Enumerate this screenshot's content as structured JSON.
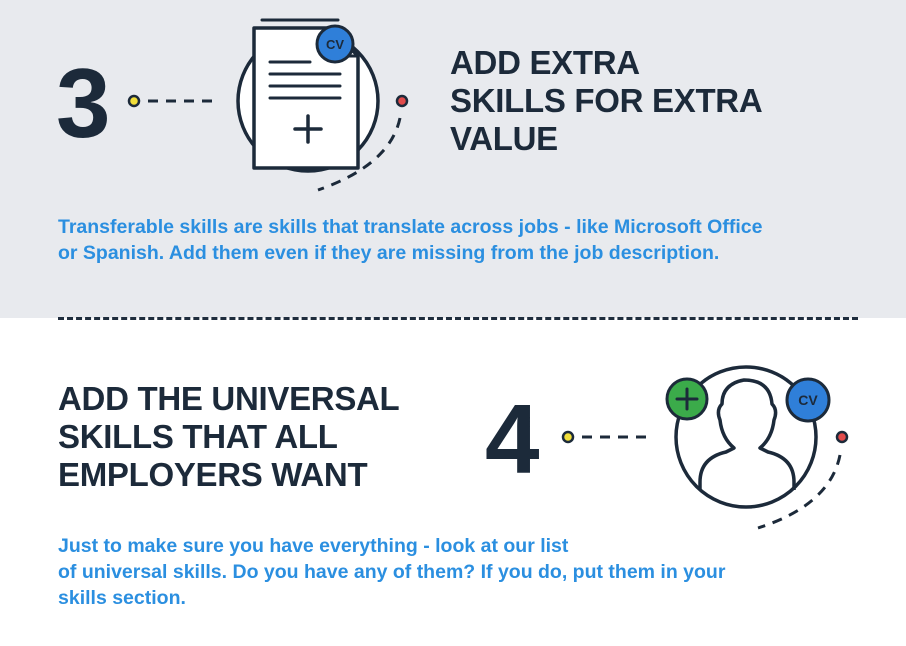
{
  "step3": {
    "number": "3",
    "heading_lines": [
      "ADD EXTRA",
      "SKILLS FOR EXTRA",
      "VALUE"
    ],
    "body_lines": [
      "Transferable skills are skills that translate across jobs - like Microsoft Office",
      "or Spanish. Add them even if they are missing from the job description."
    ],
    "badge_text": "CV",
    "icon": "document-plus-icon"
  },
  "step4": {
    "number": "4",
    "heading_lines": [
      "ADD THE UNIVERSAL",
      "SKILLS THAT ALL",
      "EMPLOYERS WANT"
    ],
    "body_lines": [
      "Just to make sure you have everything - look at our list",
      "of universal skills. Do you have any of them? If you do, put them in your",
      "skills section."
    ],
    "badge_text": "CV",
    "icon": "person-profile-icon"
  },
  "colors": {
    "top_background": "#e8eaee",
    "bottom_background": "#ffffff",
    "heading": "#1c2a3a",
    "body_text": "#2b8fe0",
    "cv_badge": "#2f7fd9",
    "plus_badge": "#3bab4a",
    "connector_dot": "#f2df3a",
    "pin_dot": "#e14b4b"
  }
}
